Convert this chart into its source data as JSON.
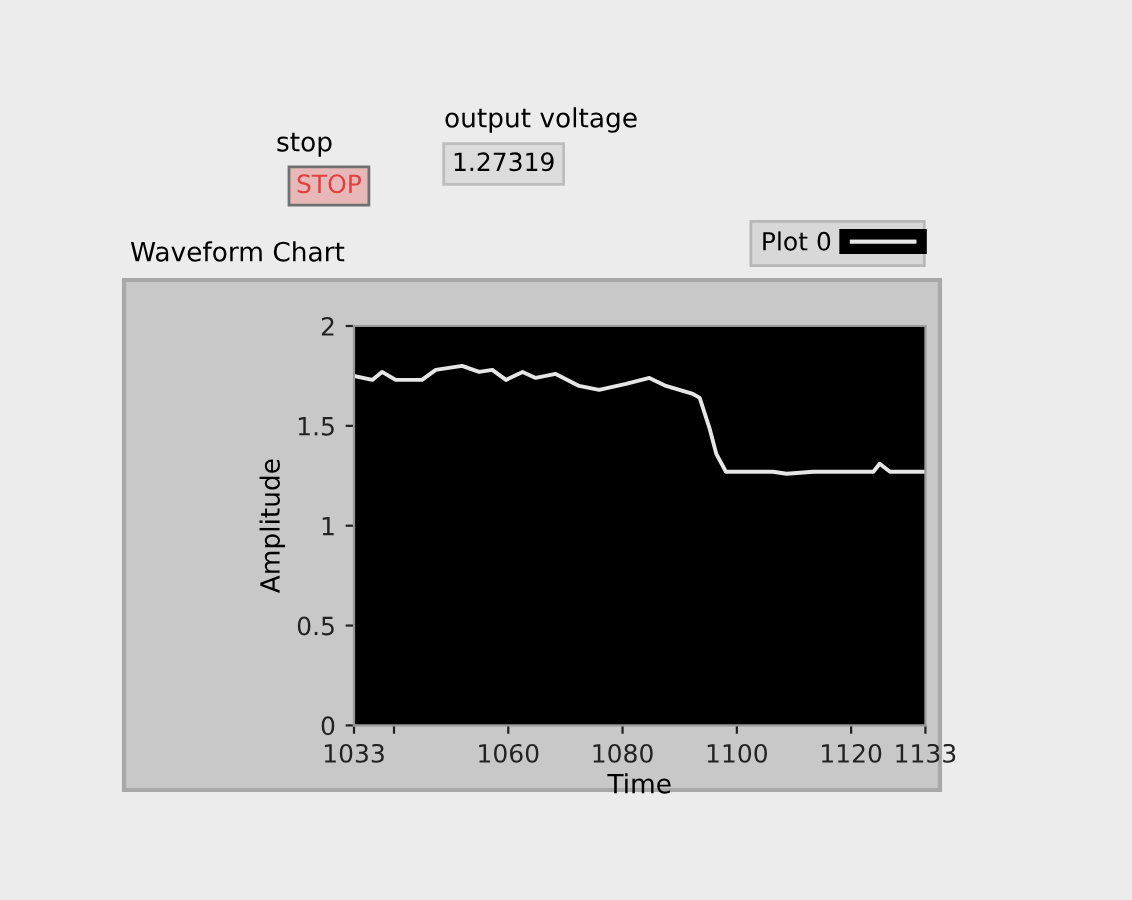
{
  "chart_data": {
    "type": "line",
    "title": "Waveform Chart",
    "xlabel": "Time",
    "ylabel": "Amplitude",
    "annotations": [
      "stop",
      "STOP",
      "output voltage",
      "1.27319"
    ],
    "xlim": [
      1033,
      1133
    ],
    "xticks": [
      1033,
      {
        "value": 1040,
        "label": null
      },
      1060,
      1080,
      1100,
      1120,
      1133
    ],
    "ylim": [
      0,
      2
    ],
    "yticks": [
      0,
      0.5,
      1,
      1.5,
      2
    ],
    "grid": false,
    "legend": "top right",
    "series": [
      {
        "name": "Plot 0",
        "color": "#e6e6e6",
        "x": [
          1033,
          1036.2,
          1037.9,
          1040.3,
          1044.9,
          1047.3,
          1051.9,
          1054.9,
          1057.2,
          1059.6,
          1062.5,
          1064.8,
          1068.3,
          1072.4,
          1075.9,
          1080.6,
          1084.7,
          1087.6,
          1092.3,
          1093.5,
          1095.2,
          1096.4,
          1098.1,
          1101.7,
          1106.3,
          1108.7,
          1113.4,
          1119.2,
          1123.9,
          1125.0,
          1126.8,
          1133
        ],
        "values": [
          1.75,
          1.73,
          1.77,
          1.73,
          1.73,
          1.78,
          1.8,
          1.77,
          1.78,
          1.73,
          1.77,
          1.74,
          1.76,
          1.7,
          1.68,
          1.71,
          1.74,
          1.7,
          1.66,
          1.64,
          1.49,
          1.36,
          1.27,
          1.27,
          1.27,
          1.26,
          1.27,
          1.27,
          1.27,
          1.31,
          1.27,
          1.27
        ]
      }
    ]
  }
}
